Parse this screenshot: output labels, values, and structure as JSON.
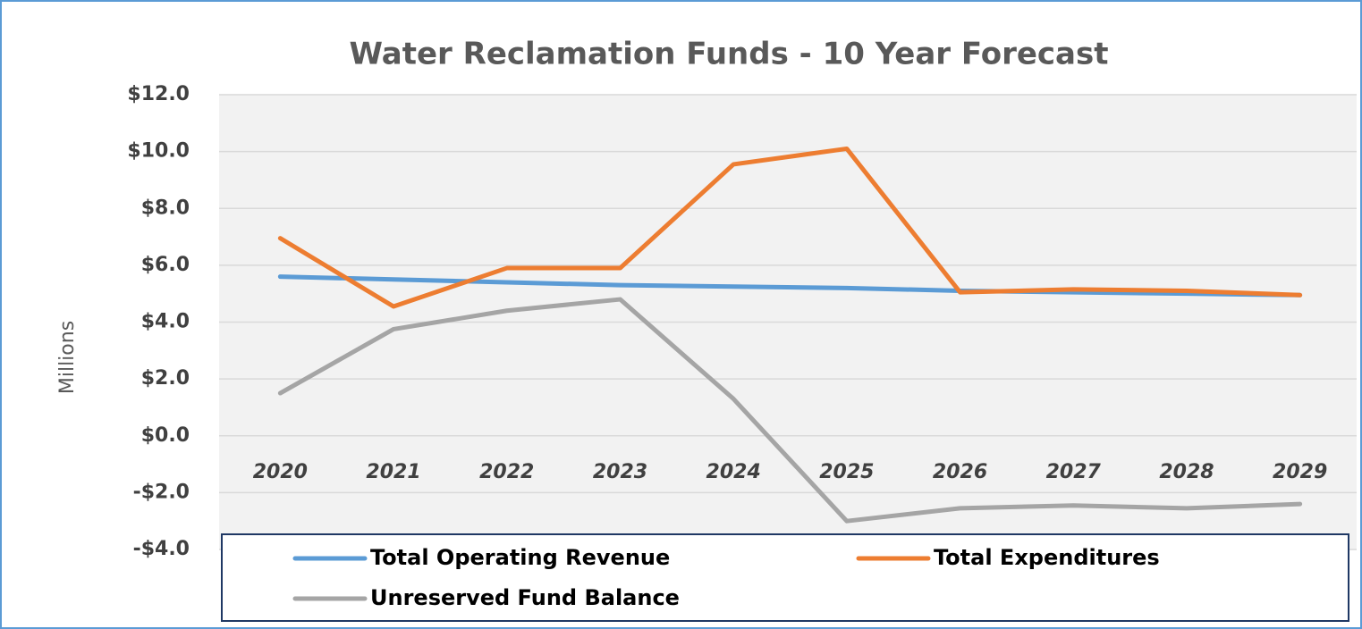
{
  "chart_data": {
    "type": "line",
    "title": "Water Reclamation Funds - 10 Year Forecast",
    "y_label": "Millions",
    "categories": [
      "2020",
      "2021",
      "2022",
      "2023",
      "2024",
      "2025",
      "2026",
      "2027",
      "2028",
      "2029"
    ],
    "series": [
      {
        "name": "Total Operating Revenue",
        "color": "#5b9bd5",
        "values": [
          5.6,
          5.5,
          5.4,
          5.3,
          5.25,
          5.2,
          5.1,
          5.05,
          5.0,
          4.95
        ]
      },
      {
        "name": "Total Expenditures",
        "color": "#ed7d31",
        "values": [
          6.95,
          4.55,
          5.9,
          5.9,
          9.55,
          10.1,
          5.05,
          5.15,
          5.1,
          4.95
        ]
      },
      {
        "name": "Unreserved Fund Balance",
        "color": "#a5a5a5",
        "values": [
          1.5,
          3.75,
          4.4,
          4.8,
          1.3,
          -3.0,
          -2.55,
          -2.45,
          -2.55,
          -2.4
        ]
      }
    ],
    "ylim": [
      -4,
      12
    ],
    "yticks": [
      {
        "value": -4,
        "label": "-$4.0"
      },
      {
        "value": -2,
        "label": "-$2.0"
      },
      {
        "value": 0,
        "label": "$0.0"
      },
      {
        "value": 2,
        "label": "$2.0"
      },
      {
        "value": 4,
        "label": "$4.0"
      },
      {
        "value": 6,
        "label": "$6.0"
      },
      {
        "value": 8,
        "label": "$8.0"
      },
      {
        "value": 10,
        "label": "$10.0"
      },
      {
        "value": 12,
        "label": "$12.0"
      }
    ],
    "grid": true,
    "legend": "bottom"
  }
}
